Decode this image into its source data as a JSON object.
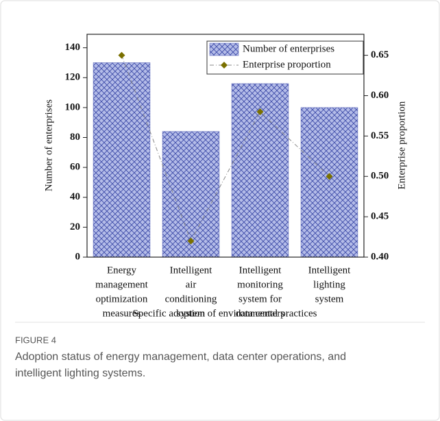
{
  "chart_data": {
    "type": "bar",
    "categories": [
      [
        "Energy",
        "management",
        "optimization",
        "measures"
      ],
      [
        "Intelligent",
        "air",
        "conditioning",
        "system"
      ],
      [
        "Intelligent",
        "monitoring",
        "system for",
        "data centers"
      ],
      [
        "Intelligent",
        "lighting",
        "system"
      ]
    ],
    "series": [
      {
        "name": "Number of enterprises",
        "type": "bar",
        "color": "#9ea8de",
        "values": [
          130,
          84,
          116,
          100
        ]
      },
      {
        "name": "Enterprise proportion",
        "type": "line",
        "axis": "y2",
        "color": "#7a7000",
        "values": [
          0.65,
          0.42,
          0.58,
          0.5
        ]
      }
    ],
    "ylim": [
      0,
      149
    ],
    "yticks": [
      0,
      20,
      40,
      60,
      80,
      100,
      120,
      140
    ],
    "y2lim": [
      0.4,
      0.676
    ],
    "y2ticks": [
      {
        "value": 0.4,
        "label": "0.40"
      },
      {
        "value": 0.45,
        "label": "0.45"
      },
      {
        "value": 0.5,
        "label": "0.50"
      },
      {
        "value": 0.55,
        "label": "0.55"
      },
      {
        "value": 0.6,
        "label": "0.60"
      },
      {
        "value": 0.65,
        "label": "0.65"
      }
    ],
    "ylabel": "Number of enterprises",
    "y2label": "Enterprise proportion",
    "xlabel": "Specific adoption of environmental practices",
    "legend": "upper right",
    "figure_label": "FIGURE 4",
    "caption": [
      "Adoption status of energy management, data center operations, and",
      "intelligent lighting systems."
    ]
  }
}
